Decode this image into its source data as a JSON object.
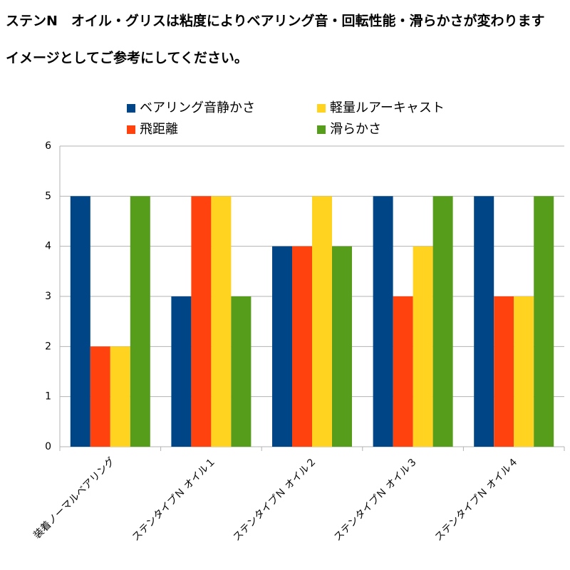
{
  "chart_data": {
    "type": "bar",
    "title": "ステンN　オイル・グリスは粘度によりベアリング音・回転性能・滑らかさが変わります",
    "subtitle": "イメージとしてご参考にしてください。",
    "categories": [
      "装着ノーマルベアリング",
      "ステンタイプＮ オイル１",
      "ステンタイプＮ オイル２",
      "ステンタイプＮ オイル３",
      "ステンタイプＮ オイル４"
    ],
    "series": [
      {
        "name": "ベアリング音静かさ",
        "color": "#004586",
        "values": [
          5,
          3,
          4,
          5,
          5
        ]
      },
      {
        "name": "飛距離",
        "color": "#ff420e",
        "values": [
          2,
          5,
          4,
          3,
          3
        ]
      },
      {
        "name": "軽量ルアーキャスト",
        "color": "#ffd320",
        "values": [
          2,
          5,
          5,
          4,
          3
        ]
      },
      {
        "name": "滑らかさ",
        "color": "#579d1c",
        "values": [
          5,
          3,
          4,
          5,
          5
        ]
      }
    ],
    "ylim": [
      0,
      6
    ],
    "yticks": [
      0,
      1,
      2,
      3,
      4,
      5,
      6
    ],
    "grid": true,
    "legend": "top"
  }
}
